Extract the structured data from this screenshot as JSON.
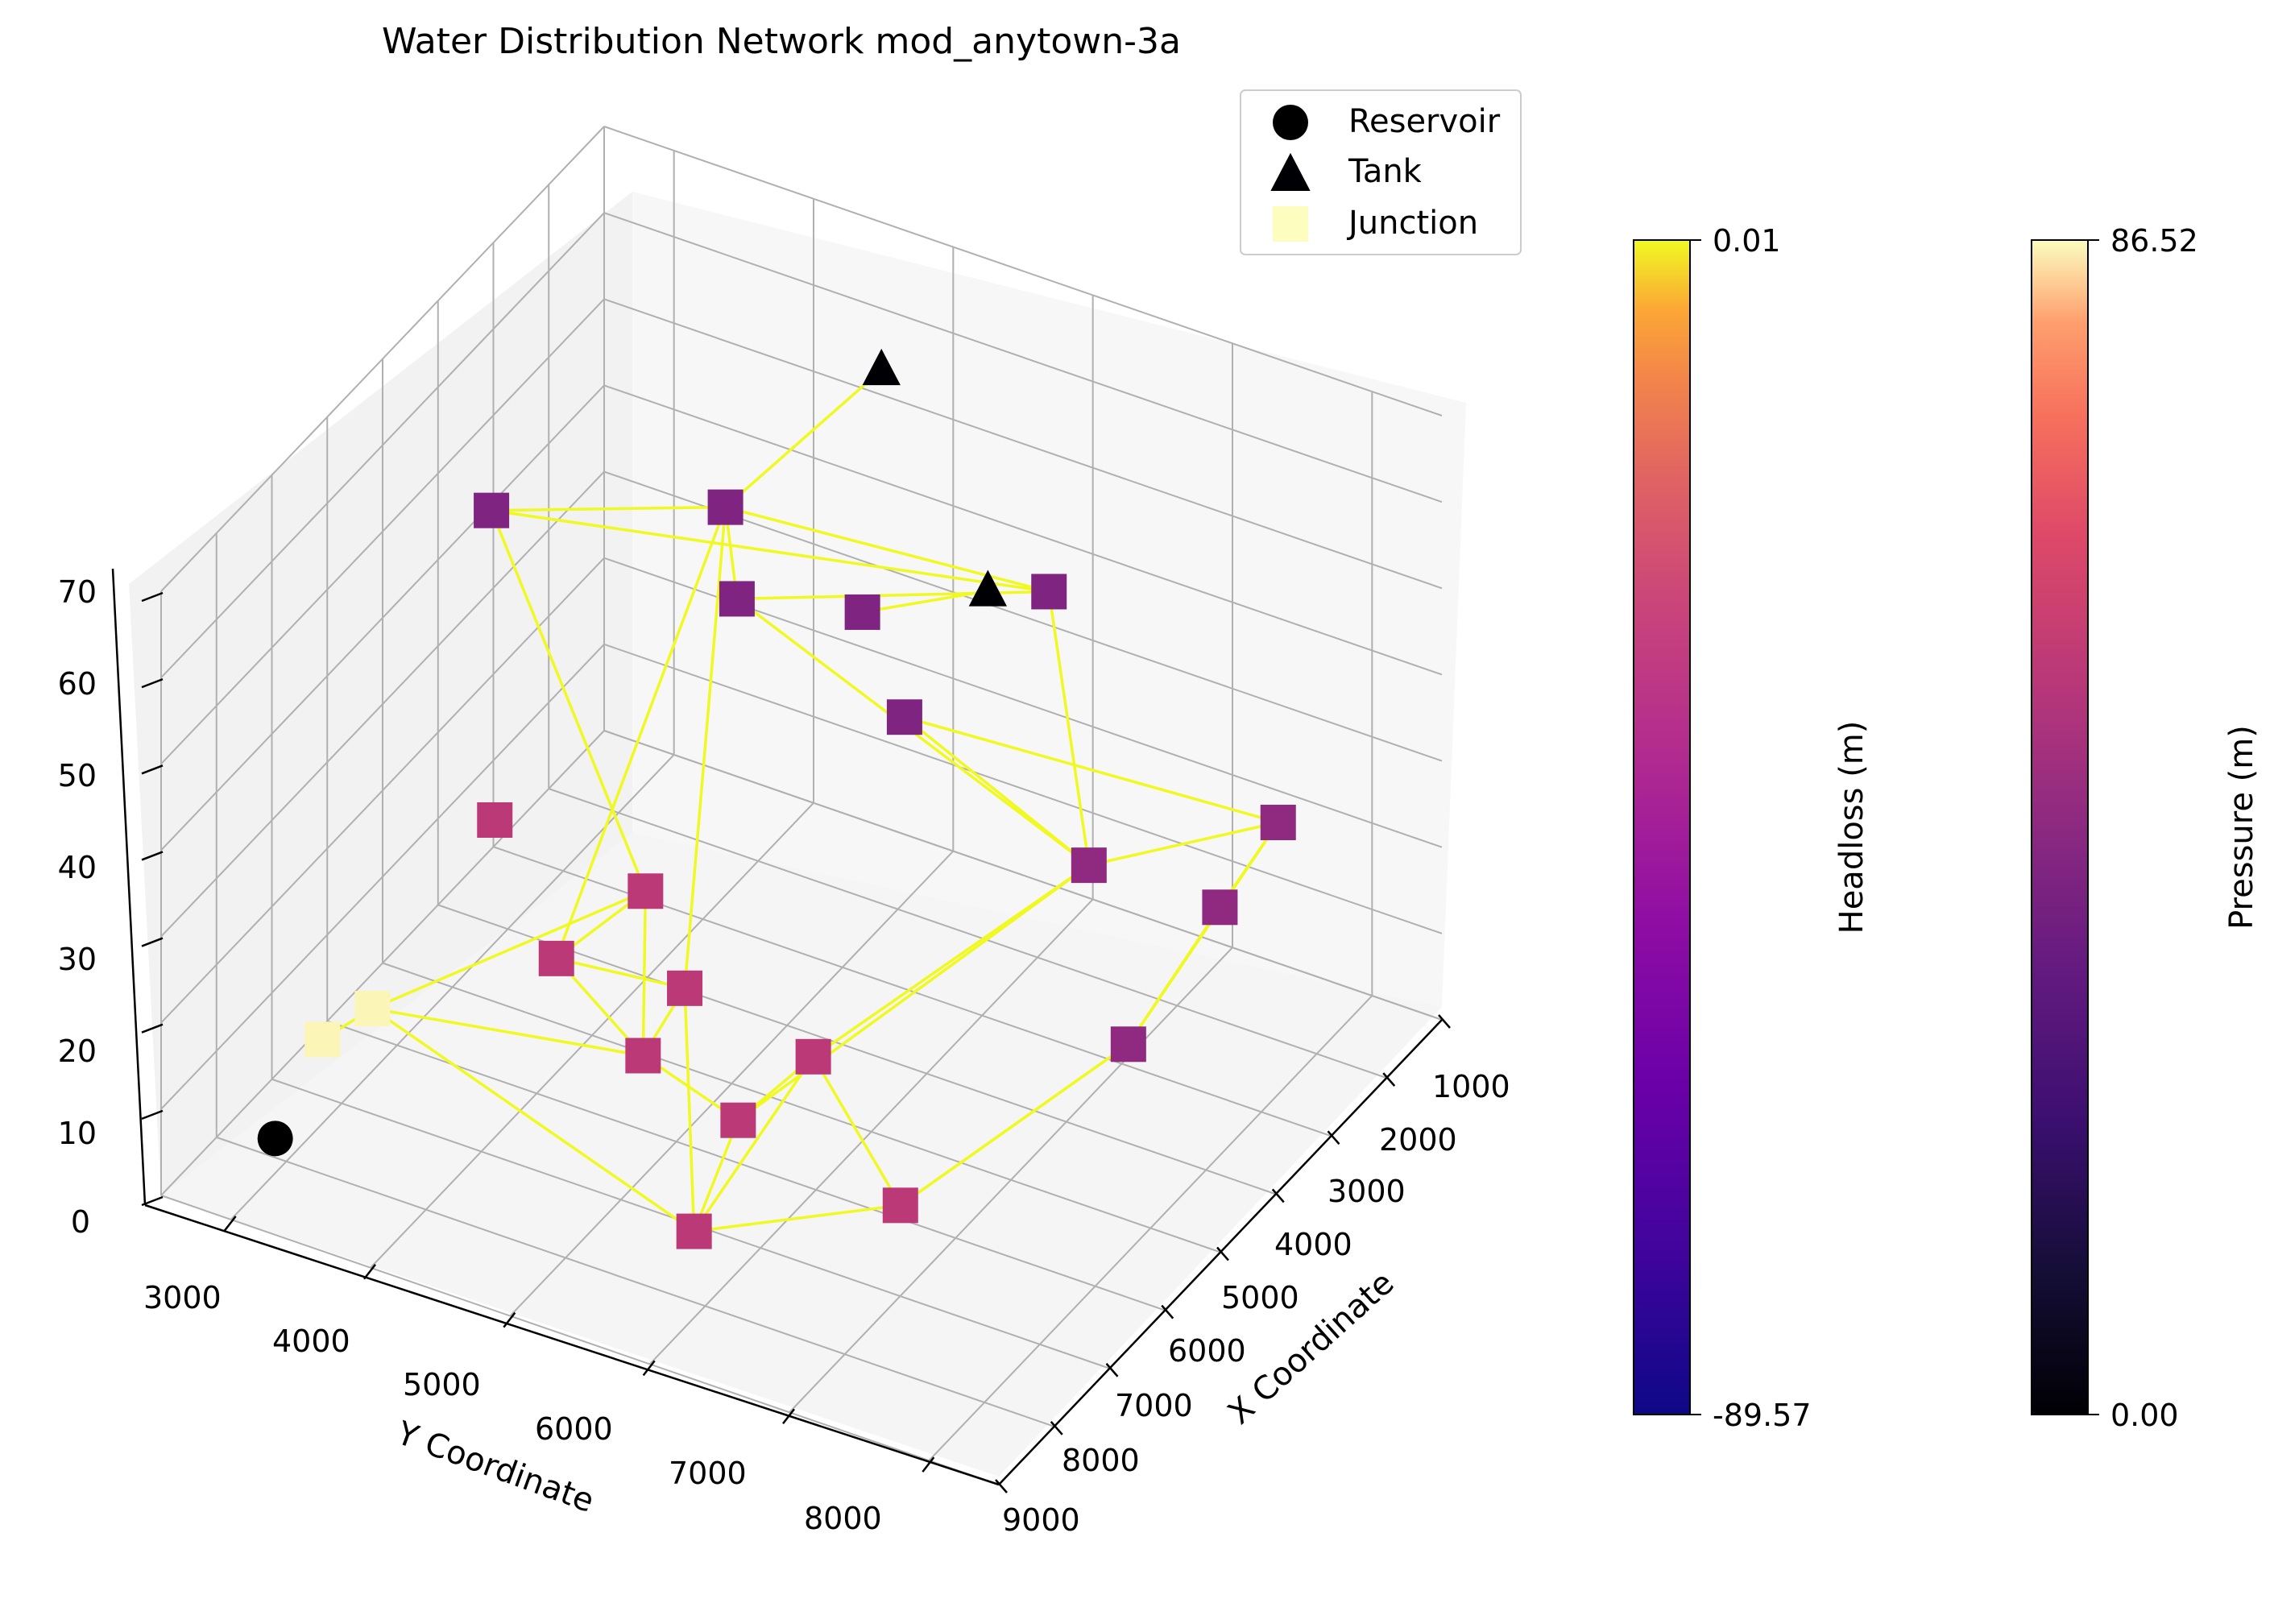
{
  "chart_data": {
    "type": "scatter",
    "title": "Water Distribution Network mod_anytown-3a",
    "xlabel": "X Coordinate",
    "ylabel": "Y Coordinate",
    "zlabel": "",
    "x_ticks": [
      "1000",
      "2000",
      "3000",
      "4000",
      "5000",
      "6000",
      "7000",
      "8000",
      "9000"
    ],
    "y_ticks": [
      "3000",
      "4000",
      "5000",
      "6000",
      "7000",
      "8000"
    ],
    "z_ticks": [
      "0",
      "10",
      "20",
      "30",
      "40",
      "50",
      "60",
      "70"
    ],
    "xlim": [
      1000,
      9000
    ],
    "ylim": [
      2500,
      8500
    ],
    "zlim": [
      0,
      70
    ],
    "grid": true,
    "legend": {
      "position": "top-right",
      "entries": [
        {
          "label": "Reservoir",
          "marker": "circle",
          "color": "#000000"
        },
        {
          "label": "Tank",
          "marker": "triangle",
          "color": "#000004"
        },
        {
          "label": "Junction",
          "marker": "square",
          "color": "#fcfdbf"
        }
      ]
    },
    "colorbars": [
      {
        "label": "Headloss (m)",
        "min": "-89.57",
        "max": "0.01",
        "colormap": "plasma"
      },
      {
        "label": "Pressure (m)",
        "min": "0.00",
        "max": "86.52",
        "colormap": "magma"
      }
    ],
    "link_color": "#f0f921",
    "nodes": [
      {
        "type": "reservoir",
        "x": 8200,
        "y": 3000,
        "z": 4,
        "pressure": 0
      },
      {
        "type": "tank",
        "x": 2800,
        "y": 5200,
        "z": 69,
        "pressure": 0
      },
      {
        "type": "tank",
        "x": 3400,
        "y": 6200,
        "z": 53,
        "pressure": 0
      },
      {
        "type": "junction",
        "x": 7600,
        "y": 3100,
        "z": 12,
        "pressure": 86
      },
      {
        "type": "junction",
        "x": 7200,
        "y": 3300,
        "z": 14,
        "pressure": 86
      },
      {
        "type": "junction",
        "x": 4800,
        "y": 3200,
        "z": 55,
        "pressure": 40
      },
      {
        "type": "junction",
        "x": 3600,
        "y": 4400,
        "z": 54,
        "pressure": 40
      },
      {
        "type": "junction",
        "x": 4400,
        "y": 4800,
        "z": 51,
        "pressure": 40
      },
      {
        "type": "junction",
        "x": 3900,
        "y": 5500,
        "z": 50,
        "pressure": 40
      },
      {
        "type": "junction",
        "x": 2800,
        "y": 6400,
        "z": 50,
        "pressure": 40
      },
      {
        "type": "junction",
        "x": 4400,
        "y": 6000,
        "z": 44,
        "pressure": 40
      },
      {
        "type": "junction",
        "x": 4600,
        "y": 7400,
        "z": 36,
        "pressure": 44
      },
      {
        "type": "junction",
        "x": 3200,
        "y": 8200,
        "z": 36,
        "pressure": 44
      },
      {
        "type": "junction",
        "x": 4000,
        "y": 8100,
        "z": 31,
        "pressure": 44
      },
      {
        "type": "junction",
        "x": 5400,
        "y": 8000,
        "z": 24,
        "pressure": 44
      },
      {
        "type": "junction",
        "x": 6000,
        "y": 3700,
        "z": 30,
        "pressure": 55
      },
      {
        "type": "junction",
        "x": 5800,
        "y": 4700,
        "z": 26,
        "pressure": 55
      },
      {
        "type": "junction",
        "x": 6400,
        "y": 4300,
        "z": 20,
        "pressure": 55
      },
      {
        "type": "junction",
        "x": 6100,
        "y": 5100,
        "z": 19,
        "pressure": 55
      },
      {
        "type": "junction",
        "x": 6600,
        "y": 5000,
        "z": 14,
        "pressure": 55
      },
      {
        "type": "junction",
        "x": 6900,
        "y": 5800,
        "z": 13,
        "pressure": 55
      },
      {
        "type": "junction",
        "x": 6300,
        "y": 6100,
        "z": 18,
        "pressure": 55
      },
      {
        "type": "junction",
        "x": 7500,
        "y": 7200,
        "z": 15,
        "pressure": 55
      },
      {
        "type": "junction",
        "x": 8200,
        "y": 6000,
        "z": 10,
        "pressure": 55
      }
    ],
    "links": [
      [
        1,
        6
      ],
      [
        2,
        8
      ],
      [
        5,
        6
      ],
      [
        5,
        9
      ],
      [
        6,
        9
      ],
      [
        6,
        7
      ],
      [
        5,
        16
      ],
      [
        6,
        17
      ],
      [
        6,
        18
      ],
      [
        7,
        9
      ],
      [
        7,
        11
      ],
      [
        9,
        11
      ],
      [
        11,
        10
      ],
      [
        10,
        12
      ],
      [
        11,
        12
      ],
      [
        12,
        13
      ],
      [
        13,
        14
      ],
      [
        12,
        14
      ],
      [
        11,
        21
      ],
      [
        11,
        20
      ],
      [
        16,
        17
      ],
      [
        16,
        19
      ],
      [
        16,
        4
      ],
      [
        17,
        19
      ],
      [
        17,
        18
      ],
      [
        18,
        19
      ],
      [
        19,
        20
      ],
      [
        20,
        21
      ],
      [
        18,
        23
      ],
      [
        20,
        23
      ],
      [
        21,
        22
      ],
      [
        21,
        23
      ],
      [
        22,
        14
      ],
      [
        22,
        23
      ],
      [
        23,
        4
      ],
      [
        4,
        19
      ],
      [
        4,
        3
      ],
      [
        14,
        22
      ]
    ]
  }
}
